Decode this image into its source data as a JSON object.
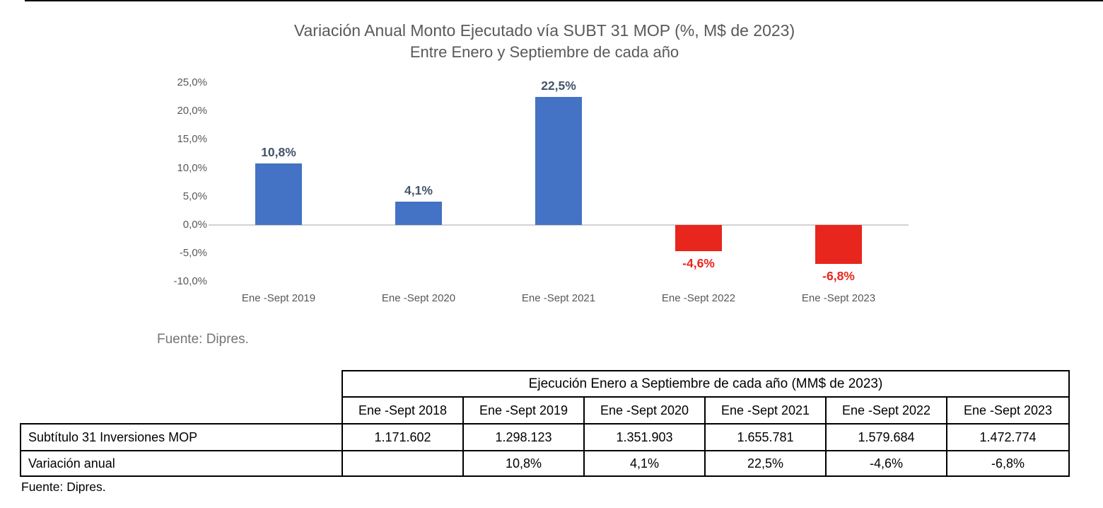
{
  "chart": {
    "title": "Variación Anual Monto Ejecutado vía SUBT 31 MOP (%, M$ de 2023)",
    "subtitle": "Entre Enero y Septiembre de cada año",
    "source": "Fuente: Dipres."
  },
  "chart_data": {
    "type": "bar",
    "title": "Variación Anual Monto Ejecutado vía SUBT 31 MOP (%, M$ de 2023)",
    "subtitle": "Entre Enero y Septiembre de cada año",
    "categories": [
      "Ene -Sept 2019",
      "Ene -Sept  2020",
      "Ene -Sept 2021",
      "Ene -Sept 2022",
      "Ene -Sept 2023"
    ],
    "values": [
      10.8,
      4.1,
      22.5,
      -4.6,
      -6.8
    ],
    "data_labels": [
      "10,8%",
      "4,1%",
      "22,5%",
      "-4,6%",
      "-6,8%"
    ],
    "ylim": [
      -10,
      25
    ],
    "yticks": [
      25,
      20,
      15,
      10,
      5,
      0,
      -5,
      -10
    ],
    "ytick_labels": [
      "25,0%",
      "20,0%",
      "15,0%",
      "10,0%",
      "5,0%",
      "0,0%",
      "-5,0%",
      "-10,0%"
    ],
    "grid": false,
    "legend": false,
    "positive_bar_color": "#4472C4",
    "negative_bar_color": "#E8261D",
    "positive_label_color": "#44546A",
    "negative_label_color": "#E8261D",
    "axis_text_color": "#595959"
  },
  "table": {
    "title": "Ejecución Enero a Septiembre de cada año (MM$ de 2023)",
    "columns": [
      "Ene -Sept 2018",
      "Ene -Sept 2019",
      "Ene -Sept  2020",
      "Ene -Sept 2021",
      "Ene -Sept 2022",
      "Ene -Sept 2023"
    ],
    "rows": [
      {
        "label": "Subtítulo 31 Inversiones MOP",
        "values": [
          "1.171.602",
          "1.298.123",
          "1.351.903",
          "1.655.781",
          "1.579.684",
          "1.472.774"
        ]
      },
      {
        "label": "Variación anual",
        "values": [
          "",
          "10,8%",
          "4,1%",
          "22,5%",
          "-4,6%",
          "-6,8%"
        ]
      }
    ],
    "source": "Fuente: Dipres."
  }
}
